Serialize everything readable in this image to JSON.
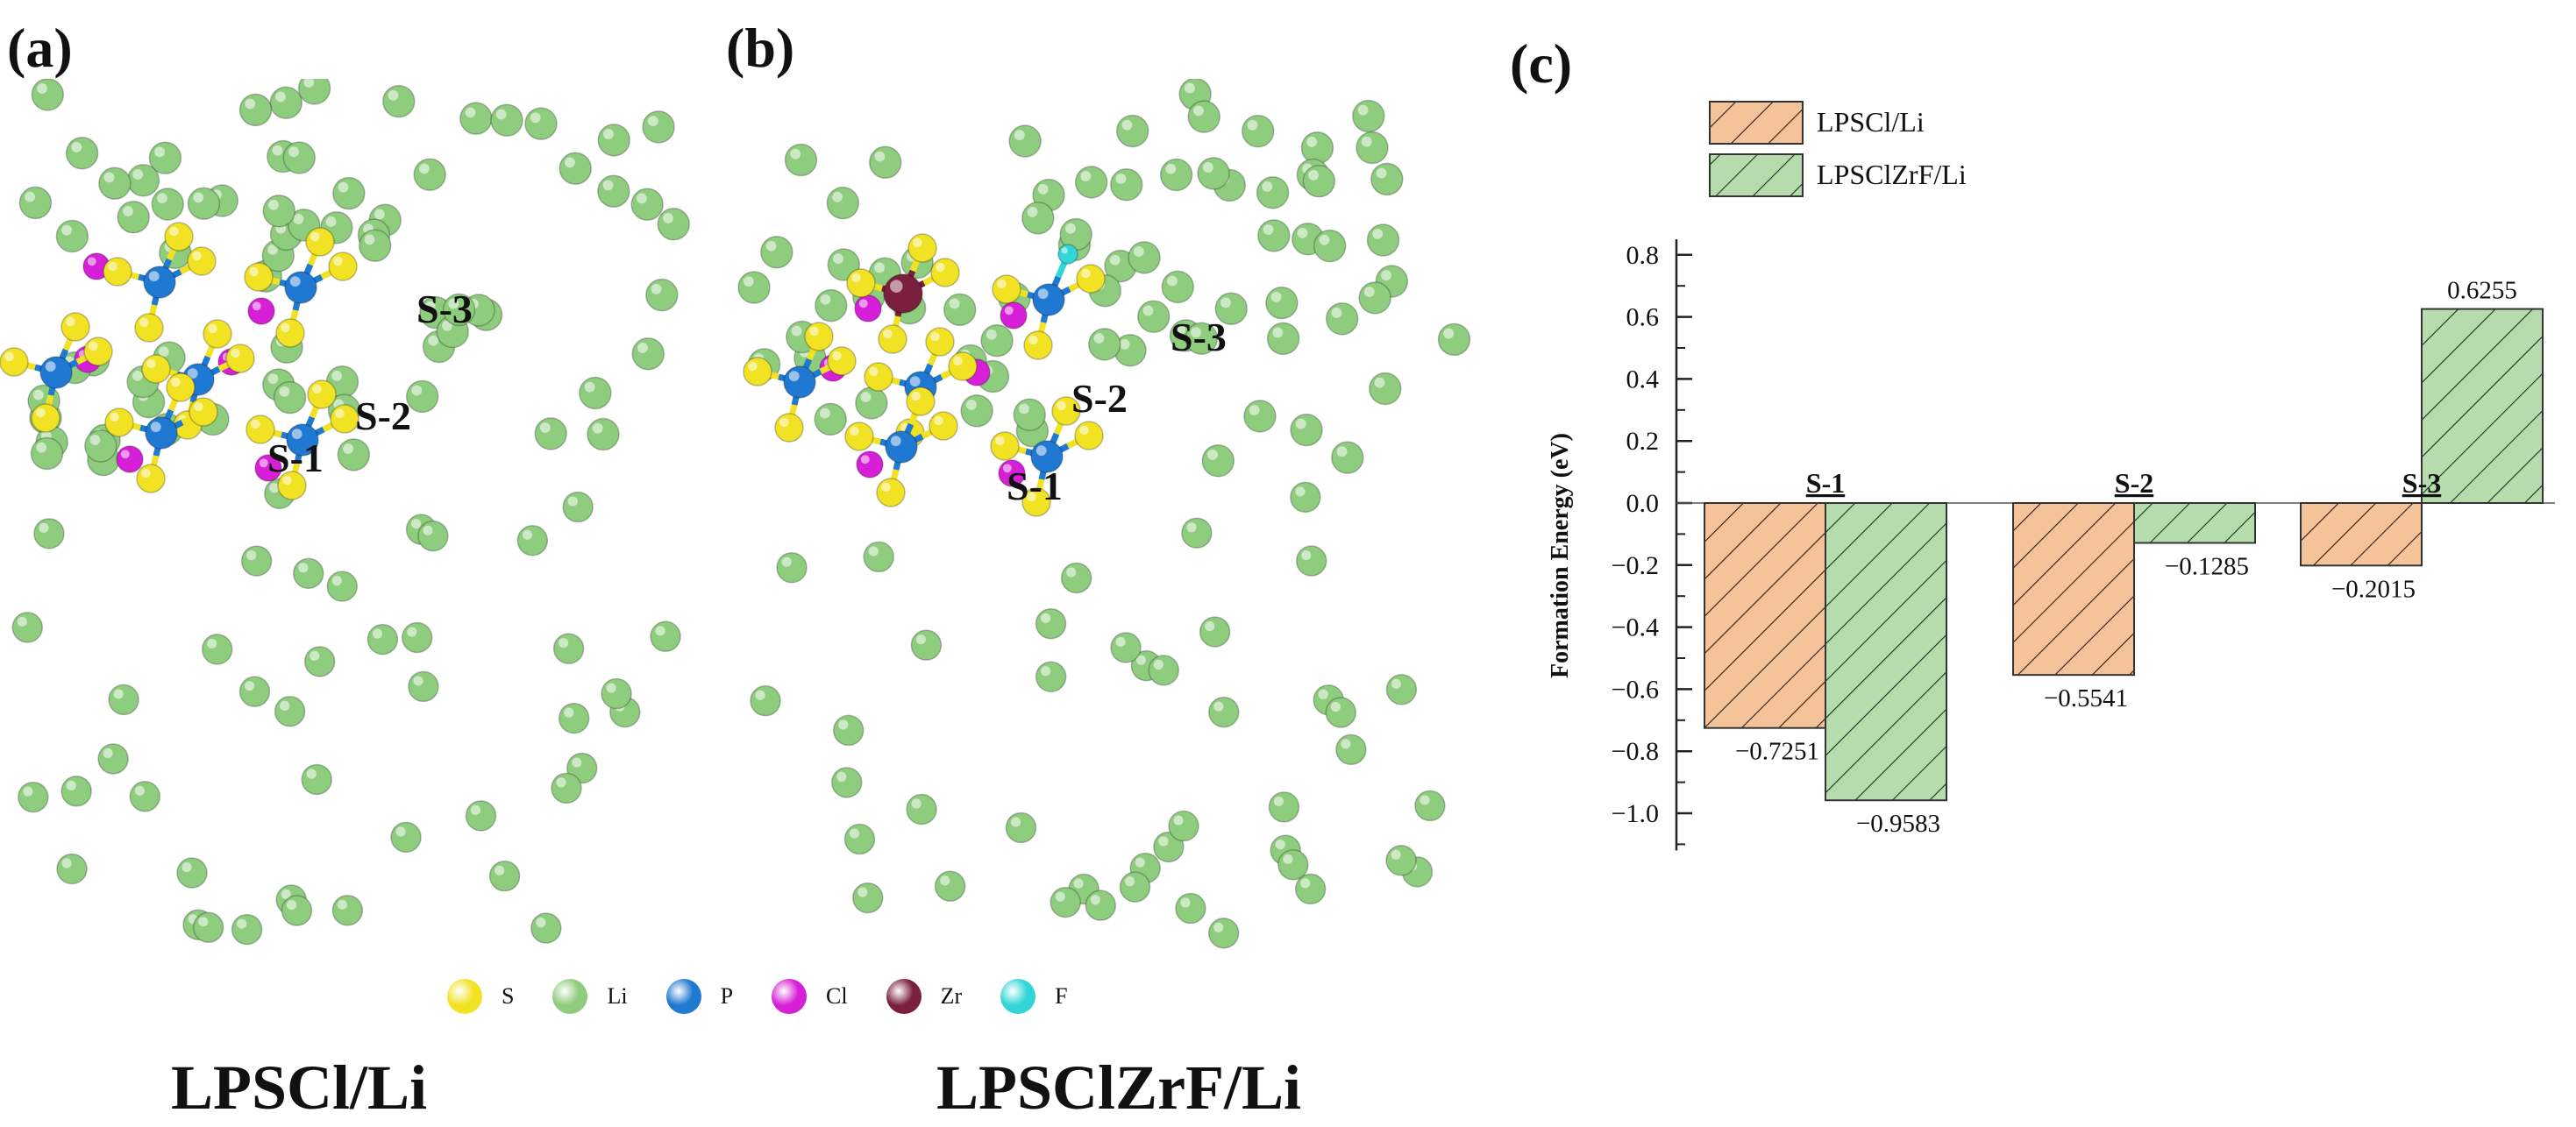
{
  "panels": {
    "a": {
      "label": "(a)",
      "caption": "LPSCl/Li",
      "sites": [
        "S-1",
        "S-2",
        "S-3"
      ]
    },
    "b": {
      "label": "(b)",
      "caption": "LPSClZrF/Li",
      "sites": [
        "S-1",
        "S-2",
        "S-3"
      ]
    },
    "c": {
      "label": "(c)"
    }
  },
  "atom_legend": [
    {
      "symbol": "S",
      "color": "#f2e224"
    },
    {
      "symbol": "Li",
      "color": "#8ecc7e"
    },
    {
      "symbol": "P",
      "color": "#1f78d1"
    },
    {
      "symbol": "Cl",
      "color": "#d61fd6"
    },
    {
      "symbol": "Zr",
      "color": "#7a1f3d"
    },
    {
      "symbol": "F",
      "color": "#33d6d6"
    }
  ],
  "chart_data": {
    "type": "bar",
    "title": "",
    "xlabel": "",
    "ylabel": "Formation Energy (eV)",
    "ylim": [
      -1.1,
      0.85
    ],
    "yticks": [
      "0.8",
      "0.6",
      "0.4",
      "0.2",
      "0.0",
      "-0.2",
      "-0.4",
      "-0.6",
      "-0.8",
      "-1.0"
    ],
    "categories": [
      "S-1",
      "S-2",
      "S-3"
    ],
    "series": [
      {
        "name": "LPSCl/Li",
        "color": "#f5c39a",
        "values": [
          -0.7251,
          -0.5541,
          -0.2015
        ],
        "labels": [
          "−0.7251",
          "−0.5541",
          "−0.2015"
        ]
      },
      {
        "name": "LPSClZrF/Li",
        "color": "#b6dcae",
        "values": [
          -0.9583,
          -0.1285,
          0.6255
        ],
        "labels": [
          "−0.9583",
          "−0.1285",
          "0.6255"
        ]
      }
    ],
    "legend_position": "top-left"
  }
}
